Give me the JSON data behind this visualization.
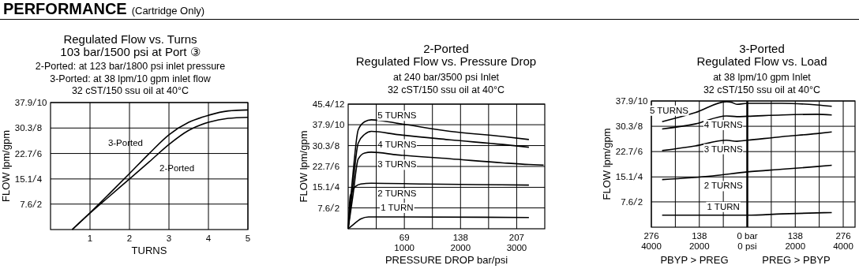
{
  "chart_data": [
    {
      "type": "other",
      "title": "PERFORMANCE",
      "subtitle": "(Cartridge Only)"
    },
    {
      "type": "line",
      "title": "Regulated Flow vs. Turns\n103 bar/1500 psi at Port ③",
      "subtitle": "2-Ported: at 123 bar/1800 psi inlet pressure\n3-Ported: at 38 lpm/10 gpm inlet flow\n32 cST/150 ssu oil at 40°C",
      "xlabel": "TURNS",
      "ylabel": "FLOW lpm/gpm",
      "xlim": [
        0,
        5
      ],
      "xticks": [
        1,
        2,
        3,
        4,
        5
      ],
      "ylim": [
        0,
        37.9
      ],
      "yticks": [
        7.6,
        15.1,
        22.7,
        30.3,
        37.9
      ],
      "y2lim": [
        0,
        10
      ],
      "y2ticks": [
        2,
        4,
        6,
        8,
        10
      ],
      "grid": true,
      "series": [
        {
          "name": "3-Ported",
          "color": "#000000",
          "x": [
            0.55,
            1,
            1.5,
            2,
            2.5,
            3,
            3.5,
            4,
            4.5,
            5
          ],
          "values": [
            0,
            5.0,
            10.8,
            16.7,
            22.7,
            28.3,
            32.0,
            34.1,
            35.4,
            35.7
          ]
        },
        {
          "name": "2-Ported",
          "color": "#000000",
          "x": [
            0.55,
            1,
            1.5,
            2,
            2.5,
            3,
            3.5,
            4,
            4.5,
            5
          ],
          "values": [
            0,
            4.9,
            10.0,
            15.1,
            20.2,
            25.4,
            29.6,
            32.0,
            33.2,
            33.5
          ]
        }
      ]
    },
    {
      "type": "line",
      "title": "2-Ported\nRegulated Flow vs. Pressure Drop",
      "subtitle": "at 240 bar/3500 psi Inlet\n32 cST/150 ssu oil at 40°C",
      "xlabel": "PRESSURE DROP bar/psi",
      "ylabel": "FLOW lpm/gpm",
      "xlim": [
        0,
        241.5
      ],
      "xticks": [
        {
          "value": 34.5,
          "label": null
        },
        69,
        {
          "value": 103.5,
          "label": null
        },
        138,
        {
          "value": 172.5,
          "label": null
        },
        207
      ],
      "x2lim": [
        0,
        3500
      ],
      "x2ticks": [
        1000,
        2000,
        3000
      ],
      "ylim": [
        0,
        45.4
      ],
      "yticks": [
        7.6,
        15.1,
        22.7,
        30.3,
        37.9,
        45.4
      ],
      "y2lim": [
        0,
        12
      ],
      "y2ticks": [
        2,
        4,
        6,
        8,
        10,
        12
      ],
      "grid": true,
      "series": [
        {
          "name": "5 TURNS",
          "color": "#000000",
          "x": [
            0,
            5.8,
            12.3,
            20.3,
            28.4,
            60.6,
            125,
            190,
            222
          ],
          "values": [
            0,
            19.7,
            36.0,
            39.0,
            39.7,
            38.4,
            35.5,
            33.6,
            32.5
          ]
        },
        {
          "name": "4 TURNS",
          "color": "#000000",
          "x": [
            0,
            5.8,
            12.3,
            20.3,
            28.4,
            60.6,
            125,
            190,
            222
          ],
          "values": [
            0,
            15.9,
            31.2,
            34.4,
            35.5,
            34.3,
            32.4,
            30.7,
            29.7
          ]
        },
        {
          "name": "3 TURNS",
          "color": "#000000",
          "x": [
            0,
            5.8,
            12.3,
            20.3,
            28.4,
            60.6,
            125,
            190,
            222,
            240
          ],
          "values": [
            0,
            12.0,
            25.4,
            27.6,
            27.9,
            26.9,
            25.5,
            24.0,
            23.4,
            23.2
          ]
        },
        {
          "name": "2 TURNS",
          "color": "#000000",
          "x": [
            0,
            2.6,
            9.0,
            15.5,
            28.4,
            93,
            157,
            222
          ],
          "values": [
            0,
            12.0,
            15.4,
            16.3,
            16.6,
            16.3,
            16.1,
            15.9
          ]
        },
        {
          "name": "1 TURN",
          "color": "#000000",
          "x": [
            0,
            5.8,
            15.5,
            25.1,
            60.6,
            222
          ],
          "values": [
            0,
            1.4,
            3.6,
            4.3,
            4.3,
            4.1
          ]
        }
      ]
    },
    {
      "type": "line",
      "title": "3-Ported\nRegulated Flow vs. Load",
      "subtitle": "at 38 lpm/10 gpm Inlet\n32 cST/150 ssu oil at 40°C",
      "ylabel": "FLOW lpm/gpm",
      "annotations": [
        "PBYP > PREG",
        "PREG > PBYP"
      ],
      "xlim": [
        -276,
        310
      ],
      "xticks": [
        {
          "value": -276,
          "label": "276"
        },
        {
          "value": -207,
          "label": null
        },
        {
          "value": -138,
          "label": "138"
        },
        {
          "value": -69,
          "label": null
        },
        {
          "value": 0,
          "label": "0 bar"
        },
        {
          "value": 69,
          "label": null
        },
        138,
        {
          "value": 207,
          "label": null
        },
        276
      ],
      "x2lim": [
        -4000,
        4493
      ],
      "x2ticks": [
        {
          "value": -4000,
          "label": "4000"
        },
        {
          "value": -2000,
          "label": "2000"
        },
        {
          "value": 0,
          "label": "0 psi"
        },
        2000,
        4000
      ],
      "ylim": [
        0,
        37.9
      ],
      "yticks": [
        7.6,
        15.1,
        22.7,
        30.3,
        37.9
      ],
      "y2lim": [
        0,
        10
      ],
      "y2ticks": [
        2,
        4,
        6,
        8,
        10
      ],
      "grid": true,
      "ref_lines": [
        {
          "axis": "x",
          "value": 0
        }
      ],
      "series": [
        {
          "name": "5 TURNS",
          "color": "#000000",
          "x": [
            -245,
            -150,
            -60,
            -45,
            -30,
            0,
            100,
            200,
            243
          ],
          "values": [
            31.7,
            34.4,
            37.7,
            37.5,
            36.9,
            37.2,
            37.2,
            36.7,
            36.3
          ]
        },
        {
          "name": "4 TURNS",
          "color": "#000000",
          "x": [
            -245,
            -150,
            -60,
            -30,
            0,
            100,
            200,
            243
          ],
          "values": [
            29.5,
            31.0,
            33.4,
            33.2,
            33.3,
            33.7,
            33.9,
            33.7
          ]
        },
        {
          "name": "3 TURNS",
          "color": "#000000",
          "x": [
            -245,
            -150,
            -60,
            -30,
            0,
            100,
            200,
            243
          ],
          "values": [
            23.0,
            24.4,
            26.1,
            25.8,
            26.1,
            27.2,
            28.1,
            28.6
          ]
        },
        {
          "name": "2 TURNS",
          "color": "#000000",
          "x": [
            -245,
            -100,
            0,
            100,
            200,
            243
          ],
          "values": [
            14.3,
            15.4,
            16.6,
            17.4,
            18.2,
            18.6
          ]
        },
        {
          "name": "1 TURN",
          "color": "#000000",
          "x": [
            -245,
            0,
            100,
            243
          ],
          "values": [
            3.6,
            3.6,
            4.0,
            4.4
          ]
        }
      ]
    }
  ]
}
